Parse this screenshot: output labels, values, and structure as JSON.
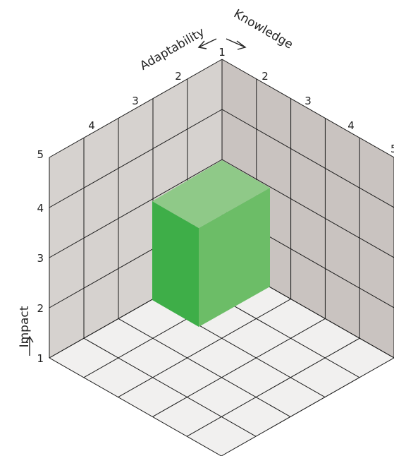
{
  "diagram": {
    "axes": {
      "adaptability": {
        "label": "Adaptability",
        "ticks": [
          "1",
          "2",
          "3",
          "4",
          "5"
        ]
      },
      "knowledge": {
        "label": "Knowledge",
        "ticks": [
          "1",
          "2",
          "3",
          "4",
          "5"
        ]
      },
      "impact": {
        "label": "Impact",
        "ticks": [
          "1",
          "2",
          "3",
          "4",
          "5"
        ]
      }
    },
    "colors": {
      "left_wall": "#d6d2cf",
      "right_wall": "#c9c3c0",
      "floor": "#f1f0ef",
      "grid_line": "#1a1a1a",
      "cube_top": "#8fc988",
      "cube_front": "#3eae48",
      "cube_right": "#6cbd67"
    }
  }
}
